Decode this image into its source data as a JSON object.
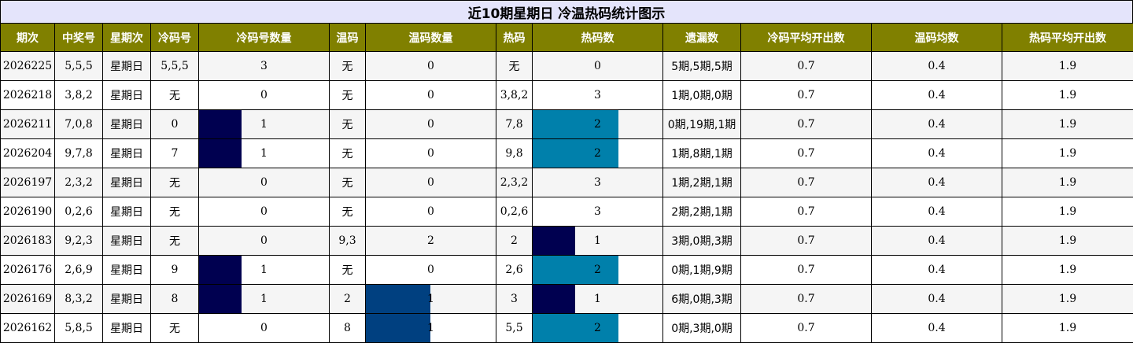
{
  "title": "近10期星期日 冷温热码统计图示",
  "headers": [
    "期次",
    "中奖号",
    "星期次",
    "冷码号",
    "冷码号数量",
    "温码",
    "温码数量",
    "热码",
    "热码数",
    "遗漏数",
    "冷码平均开出数",
    "温码均数",
    "热码平均开出数"
  ],
  "colors": {
    "header_bg": "#808000",
    "title_bg": "#e4e4fb",
    "bar_level_1": "#000050",
    "bar_level_2": "#0080ab",
    "warm_bar": "#004080"
  },
  "rows": [
    {
      "period": "2026225",
      "numbers": "5,5,5",
      "weekday": "星期日",
      "cold": "5,5,5",
      "cold_count": "3",
      "warm": "无",
      "warm_count": "0",
      "hot": "无",
      "hot_count": "0",
      "missing": "5期,5期,5期",
      "cold_avg": "0.7",
      "warm_avg": "0.4",
      "hot_avg": "1.9"
    },
    {
      "period": "2026218",
      "numbers": "3,8,2",
      "weekday": "星期日",
      "cold": "无",
      "cold_count": "0",
      "warm": "无",
      "warm_count": "0",
      "hot": "3,8,2",
      "hot_count": "3",
      "missing": "1期,0期,0期",
      "cold_avg": "0.7",
      "warm_avg": "0.4",
      "hot_avg": "1.9"
    },
    {
      "period": "2026211",
      "numbers": "7,0,8",
      "weekday": "星期日",
      "cold": "0",
      "cold_count": "1",
      "warm": "无",
      "warm_count": "0",
      "hot": "7,8",
      "hot_count": "2",
      "missing": "0期,19期,1期",
      "cold_avg": "0.7",
      "warm_avg": "0.4",
      "hot_avg": "1.9"
    },
    {
      "period": "2026204",
      "numbers": "9,7,8",
      "weekday": "星期日",
      "cold": "7",
      "cold_count": "1",
      "warm": "无",
      "warm_count": "0",
      "hot": "9,8",
      "hot_count": "2",
      "missing": "1期,8期,1期",
      "cold_avg": "0.7",
      "warm_avg": "0.4",
      "hot_avg": "1.9"
    },
    {
      "period": "2026197",
      "numbers": "2,3,2",
      "weekday": "星期日",
      "cold": "无",
      "cold_count": "0",
      "warm": "无",
      "warm_count": "0",
      "hot": "2,3,2",
      "hot_count": "3",
      "missing": "1期,2期,1期",
      "cold_avg": "0.7",
      "warm_avg": "0.4",
      "hot_avg": "1.9"
    },
    {
      "period": "2026190",
      "numbers": "0,2,6",
      "weekday": "星期日",
      "cold": "无",
      "cold_count": "0",
      "warm": "无",
      "warm_count": "0",
      "hot": "0,2,6",
      "hot_count": "3",
      "missing": "2期,2期,1期",
      "cold_avg": "0.7",
      "warm_avg": "0.4",
      "hot_avg": "1.9"
    },
    {
      "period": "2026183",
      "numbers": "9,2,3",
      "weekday": "星期日",
      "cold": "无",
      "cold_count": "0",
      "warm": "9,3",
      "warm_count": "2",
      "hot": "2",
      "hot_count": "1",
      "missing": "3期,0期,3期",
      "cold_avg": "0.7",
      "warm_avg": "0.4",
      "hot_avg": "1.9"
    },
    {
      "period": "2026176",
      "numbers": "2,6,9",
      "weekday": "星期日",
      "cold": "9",
      "cold_count": "1",
      "warm": "无",
      "warm_count": "0",
      "hot": "2,6",
      "hot_count": "2",
      "missing": "0期,1期,9期",
      "cold_avg": "0.7",
      "warm_avg": "0.4",
      "hot_avg": "1.9"
    },
    {
      "period": "2026169",
      "numbers": "8,3,2",
      "weekday": "星期日",
      "cold": "8",
      "cold_count": "1",
      "warm": "2",
      "warm_count": "1",
      "hot": "3",
      "hot_count": "1",
      "missing": "6期,0期,3期",
      "cold_avg": "0.7",
      "warm_avg": "0.4",
      "hot_avg": "1.9"
    },
    {
      "period": "2026162",
      "numbers": "5,8,5",
      "weekday": "星期日",
      "cold": "无",
      "cold_count": "0",
      "warm": "8",
      "warm_count": "1",
      "hot": "5,5",
      "hot_count": "2",
      "missing": "0期,3期,0期",
      "cold_avg": "0.7",
      "warm_avg": "0.4",
      "hot_avg": "1.9"
    }
  ]
}
